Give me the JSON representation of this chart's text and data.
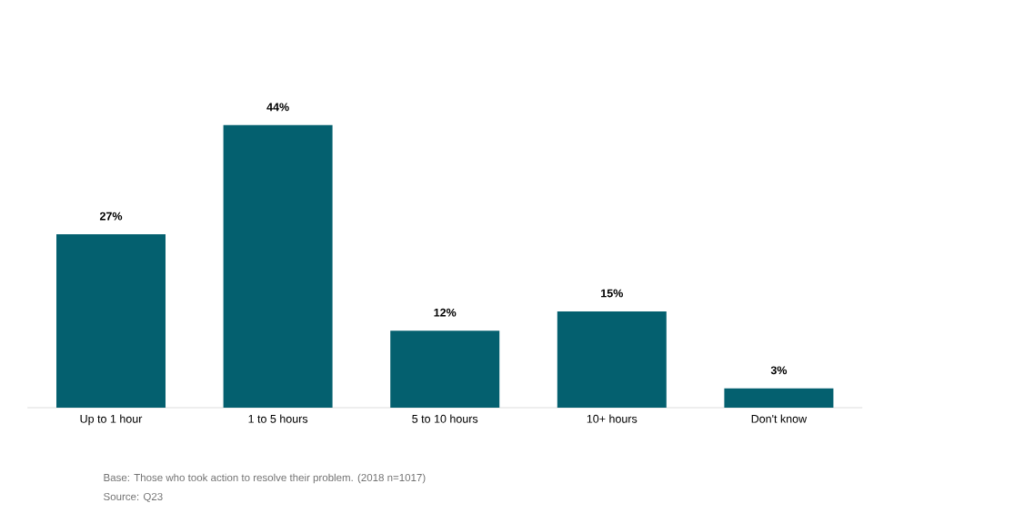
{
  "chart_data": {
    "type": "bar",
    "categories": [
      "Up to 1 hour",
      "1 to 5 hours",
      "5 to 10 hours",
      "10+ hours",
      "Don't know"
    ],
    "values": [
      27,
      44,
      12,
      15,
      3
    ],
    "value_labels": [
      "27%",
      "44%",
      "12%",
      "15%",
      "3%"
    ],
    "color": "#04606f",
    "annotations": [
      "Base: Those who took action to resolve their problem. (2018 n=1017)",
      "Source: Q23"
    ]
  }
}
